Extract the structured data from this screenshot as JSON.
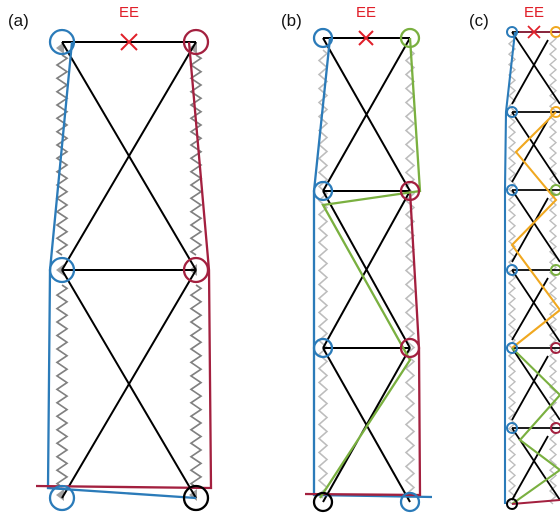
{
  "colors": {
    "blue": "#2b7bb9",
    "red": "#a3203f",
    "green": "#7ab040",
    "orange": "#f0a820",
    "spring_a": "#808080",
    "spring_light": "#bdbdbd",
    "truss": "#000000",
    "ee": "#e0202a"
  },
  "panels": [
    {
      "id": "a",
      "label": "(a)",
      "ee_label": "EE",
      "levels": 3,
      "chain_colors": [
        "blue",
        "red"
      ]
    },
    {
      "id": "b",
      "label": "(b)",
      "ee_label": "EE",
      "levels": 4,
      "chain_colors": [
        "blue",
        "red",
        "green"
      ]
    },
    {
      "id": "c",
      "label": "(c)",
      "ee_label": "EE",
      "levels": 7,
      "chain_colors": [
        "blue",
        "red",
        "green",
        "orange"
      ]
    }
  ]
}
